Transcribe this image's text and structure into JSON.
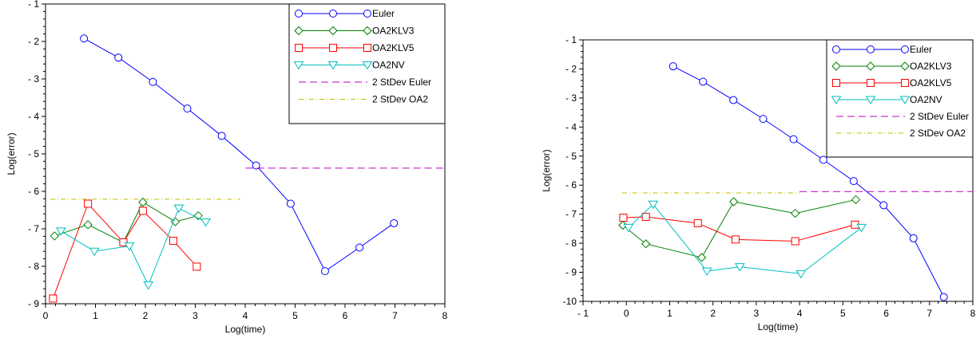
{
  "chart_data": [
    {
      "type": "line",
      "xlabel": "Log(time)",
      "ylabel": "Log(error)",
      "xlim": [
        0,
        8
      ],
      "ylim": [
        -9,
        -1
      ],
      "xticks": [
        "0",
        "1",
        "2",
        "3",
        "4",
        "5",
        "6",
        "7",
        "8"
      ],
      "yticks": [
        "- 9",
        "- 8",
        "- 7",
        "- 6",
        "- 5",
        "- 4",
        "- 3",
        "- 2",
        "- 1"
      ],
      "grid": false,
      "legend_position": "top-right",
      "series": [
        {
          "name": "Euler",
          "color": "#0000ff",
          "marker": "circle",
          "dash": "solid",
          "x": [
            0.77,
            1.46,
            2.15,
            2.84,
            3.53,
            4.22,
            4.91,
            5.6,
            6.29,
            6.98
          ],
          "y": [
            -1.92,
            -2.43,
            -3.08,
            -3.79,
            -4.52,
            -5.31,
            -6.33,
            -8.13,
            -7.5,
            -6.85
          ]
        },
        {
          "name": "OA2KLV3",
          "color": "#008000",
          "marker": "diamond",
          "dash": "solid",
          "x": [
            0.18,
            0.85,
            1.56,
            1.95,
            2.6,
            3.06
          ],
          "y": [
            -7.19,
            -6.89,
            -7.36,
            -6.29,
            -6.81,
            -6.65
          ]
        },
        {
          "name": "OA2KLV5",
          "color": "#ff0000",
          "marker": "square",
          "dash": "solid",
          "x": [
            0.15,
            0.85,
            1.56,
            1.95,
            2.56,
            3.03
          ],
          "y": [
            -8.86,
            -6.33,
            -7.36,
            -6.52,
            -7.32,
            -8.01
          ]
        },
        {
          "name": "OA2NV",
          "color": "#00bfbf",
          "marker": "triangle-down",
          "dash": "solid",
          "x": [
            0.31,
            0.98,
            1.68,
            2.06,
            2.67,
            3.21
          ],
          "y": [
            -7.06,
            -7.6,
            -7.46,
            -8.5,
            -6.45,
            -6.82
          ]
        },
        {
          "name": "2 StDev Euler",
          "color": "#bf00bf",
          "marker": "none",
          "dash": "dashed",
          "x": [
            4.01,
            8.0
          ],
          "y": [
            -5.38,
            -5.38
          ]
        },
        {
          "name": "2 StDev OA2",
          "color": "#bfbf00",
          "marker": "none",
          "dash": "dashdot",
          "x": [
            0.1,
            3.9
          ],
          "y": [
            -6.21,
            -6.21
          ]
        }
      ]
    },
    {
      "type": "line",
      "xlabel": "Log(time)",
      "ylabel": "Log(error)",
      "xlim": [
        -1,
        8
      ],
      "ylim": [
        -10,
        -1
      ],
      "xticks": [
        "- 1",
        "0",
        "1",
        "2",
        "3",
        "4",
        "5",
        "6",
        "7",
        "8"
      ],
      "yticks": [
        "-10",
        "- 9",
        "- 8",
        "- 7",
        "- 6",
        "- 5",
        "- 4",
        "- 3",
        "- 2",
        "- 1"
      ],
      "grid": false,
      "legend_position": "top-right",
      "series": [
        {
          "name": "Euler",
          "color": "#0000ff",
          "marker": "circle",
          "dash": "solid",
          "x": [
            1.08,
            1.77,
            2.47,
            3.16,
            3.86,
            4.55,
            5.25,
            5.94,
            6.63,
            7.33
          ],
          "y": [
            -1.91,
            -2.44,
            -3.07,
            -3.72,
            -4.42,
            -5.13,
            -5.86,
            -6.69,
            -7.83,
            -9.85
          ]
        },
        {
          "name": "OA2KLV3",
          "color": "#008000",
          "marker": "diamond",
          "dash": "solid",
          "x": [
            -0.08,
            0.45,
            1.74,
            2.48,
            3.9,
            5.3
          ],
          "y": [
            -7.38,
            -8.02,
            -8.49,
            -6.57,
            -6.97,
            -6.5
          ]
        },
        {
          "name": "OA2KLV5",
          "color": "#ff0000",
          "marker": "square",
          "dash": "solid",
          "x": [
            -0.07,
            0.45,
            1.65,
            2.52,
            3.9,
            5.28
          ],
          "y": [
            -7.12,
            -7.09,
            -7.31,
            -7.87,
            -7.93,
            -7.36
          ]
        },
        {
          "name": "OA2NV",
          "color": "#00bfbf",
          "marker": "triangle-down",
          "dash": "solid",
          "x": [
            0.05,
            0.62,
            1.86,
            2.62,
            4.03,
            5.43
          ],
          "y": [
            -7.46,
            -6.66,
            -8.96,
            -8.81,
            -9.05,
            -7.46
          ]
        },
        {
          "name": "2 StDev Euler",
          "color": "#bf00bf",
          "marker": "none",
          "dash": "dashed",
          "x": [
            4.0,
            8.0
          ],
          "y": [
            -6.22,
            -6.22
          ]
        },
        {
          "name": "2 StDev OA2",
          "color": "#bfbf00",
          "marker": "none",
          "dash": "dashdot",
          "x": [
            -0.1,
            4.0
          ],
          "y": [
            -6.27,
            -6.27
          ]
        }
      ]
    }
  ]
}
